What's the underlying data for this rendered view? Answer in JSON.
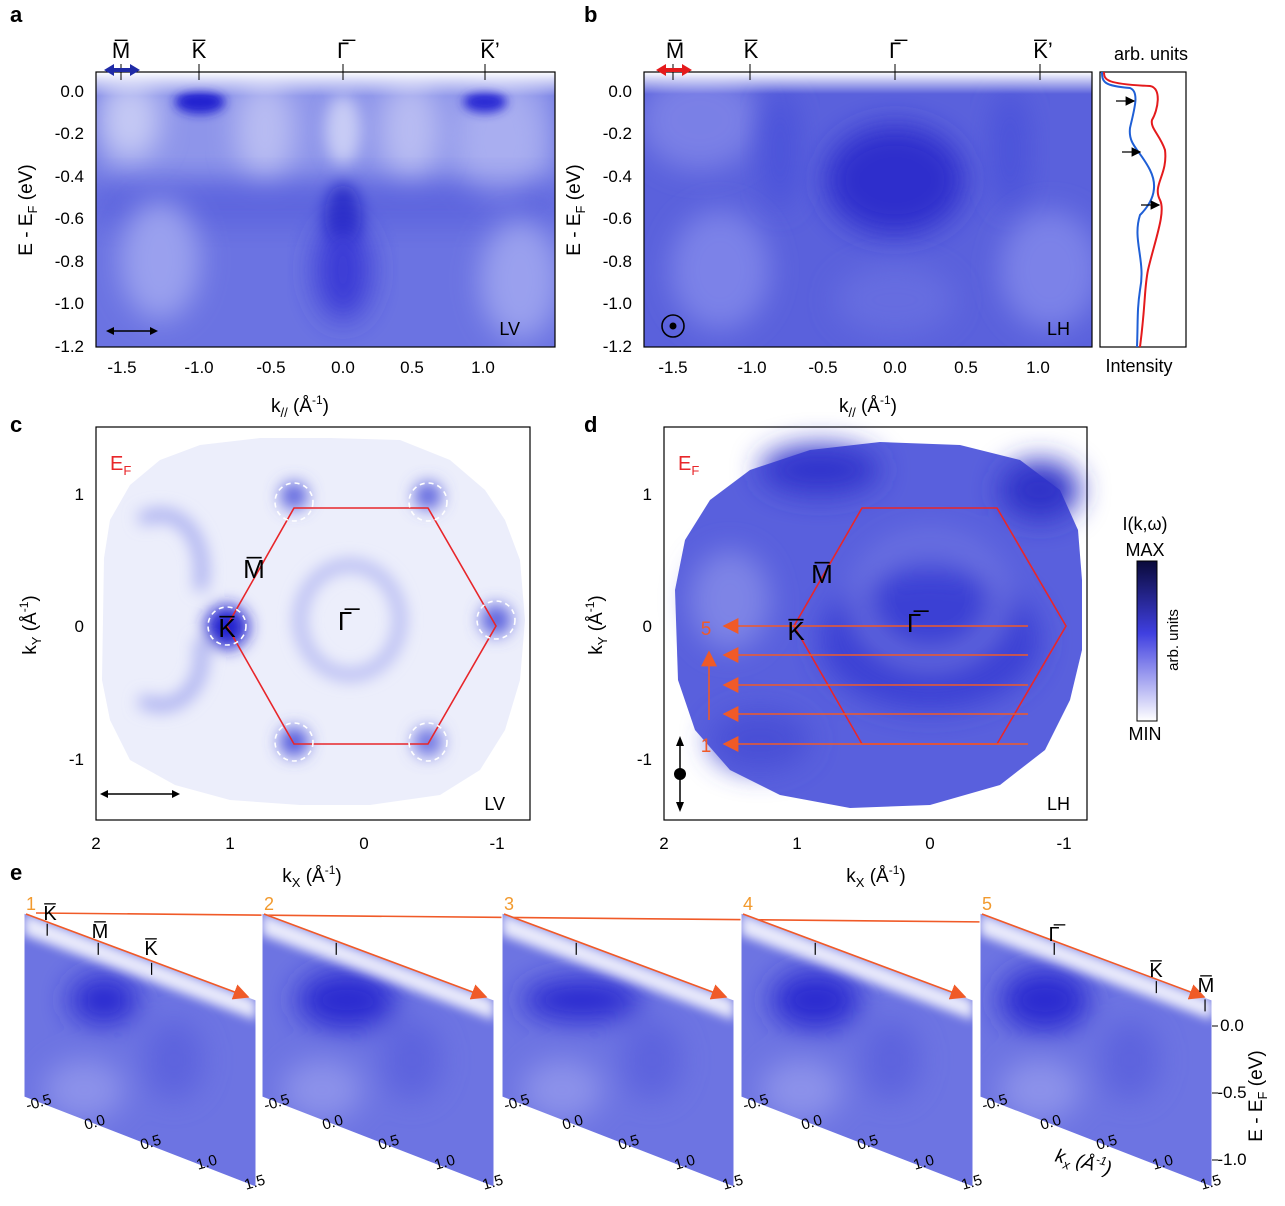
{
  "panels": {
    "a": {
      "letter": "a",
      "mode": "LV",
      "top_labels": [
        "M̅",
        "K̅",
        "Γ̅",
        "K̅’"
      ],
      "xticks": [
        "-1.5",
        "-1.0",
        "-0.5",
        "0.0",
        "0.5",
        "1.0"
      ],
      "yticks": [
        "0.0",
        "-0.2",
        "-0.4",
        "-0.6",
        "-0.8",
        "-1.0",
        "-1.2"
      ],
      "xlabel_main": "k",
      "xlabel_sub": "//",
      "xlabel_unit": " (Å",
      "xlabel_sup": "-1",
      "xlabel_end": ")",
      "ylabel_main": "E - E",
      "ylabel_sub": "F",
      "ylabel_unit": " (eV)"
    },
    "b": {
      "letter": "b",
      "mode": "LH",
      "top_labels": [
        "M̅",
        "K̅",
        "Γ̅",
        "K̅’"
      ],
      "xticks": [
        "-1.5",
        "-1.0",
        "-0.5",
        "0.0",
        "0.5",
        "1.0"
      ],
      "yticks": [
        "0.0",
        "-0.2",
        "-0.4",
        "-0.6",
        "-0.8",
        "-1.0",
        "-1.2"
      ],
      "xlabel_main": "k",
      "xlabel_sub": "//",
      "xlabel_unit": " (Å",
      "xlabel_sup": "-1",
      "xlabel_end": ")",
      "ylabel_main": "E - E",
      "ylabel_sub": "F",
      "ylabel_unit": " (eV)",
      "edc_top": "arb. units",
      "edc_bottom": "Intensity"
    },
    "c": {
      "letter": "c",
      "mode": "LV",
      "ef_main": "E",
      "ef_sub": "F",
      "xticks": [
        "2",
        "1",
        "0",
        "-1"
      ],
      "yticks": [
        "1",
        "0",
        "-1"
      ],
      "pts": {
        "M": "M̅",
        "K": "K̅",
        "G": "Γ̅"
      },
      "xlabel_main": "k",
      "xlabel_sub": "X",
      "xlabel_unit": " (Å",
      "xlabel_sup": "-1",
      "xlabel_end": ")",
      "ylabel_main": "k",
      "ylabel_sub": "Y",
      "ylabel_unit": " (Å",
      "ylabel_sup": "-1",
      "ylabel_end": ")"
    },
    "d": {
      "letter": "d",
      "mode": "LH",
      "ef_main": "E",
      "ef_sub": "F",
      "xticks": [
        "2",
        "1",
        "0",
        "-1"
      ],
      "yticks": [
        "1",
        "0",
        "-1"
      ],
      "pts": {
        "M": "M̅",
        "K": "K̅",
        "G": "Γ̅"
      },
      "cut_start": "1",
      "cut_end": "5",
      "xlabel_main": "k",
      "xlabel_sub": "X",
      "xlabel_unit": " (Å",
      "xlabel_sup": "-1",
      "xlabel_end": ")",
      "ylabel_main": "k",
      "ylabel_sub": "Y",
      "ylabel_unit": " (Å",
      "ylabel_sup": "-1",
      "ylabel_end": ")"
    },
    "e": {
      "letter": "e",
      "cut_numbers": [
        "1",
        "2",
        "3",
        "4",
        "5"
      ],
      "slice1_labels": [
        "K̅",
        "M̅",
        "K̅"
      ],
      "slice5_labels": [
        "Γ̅",
        "K̅",
        "M̅"
      ],
      "xticks": [
        "-0.5",
        "0.0",
        "0.5",
        "1.0",
        "1.5"
      ],
      "yticks": [
        "0.0",
        "-0.5",
        "-1.0"
      ],
      "xlabel": "k",
      "xlabel_sub": "x",
      "xlabel_unit": " (Å",
      "xlabel_sup": "-1",
      "xlabel_end": ")",
      "ylabel_main": "E - E",
      "ylabel_sub": "F",
      "ylabel_unit": " (eV)"
    }
  },
  "colorbar": {
    "title": "I(k,ω)",
    "max": "MAX",
    "min": "MIN",
    "units": "arb. units"
  },
  "colors": {
    "band": "#2a2ad8",
    "band_light": "#eef0fb",
    "bz": "#e8262a",
    "cut": "#f05a28",
    "number": "#f29a2e",
    "edc_red": "#e41a1c",
    "edc_blue": "#1f5fd6"
  }
}
